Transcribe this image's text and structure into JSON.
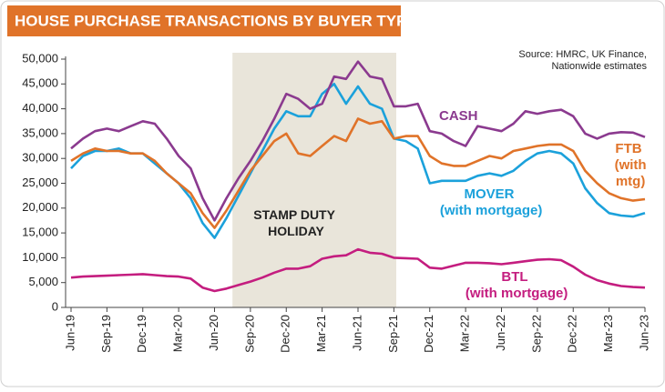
{
  "chart_data": {
    "type": "line",
    "title": "HOUSE PURCHASE TRANSACTIONS BY BUYER TYPE",
    "source": "Source: HMRC, UK Finance, Nationwide estimates",
    "categories": [
      "Jun-19",
      null,
      null,
      "Sep-19",
      null,
      null,
      "Dec-19",
      null,
      null,
      "Mar-20",
      null,
      null,
      "Jun-20",
      null,
      null,
      "Sep-20",
      null,
      null,
      "Dec-20",
      null,
      null,
      "Mar-21",
      null,
      null,
      "Jun-21",
      null,
      null,
      "Sep-21",
      null,
      null,
      "Dec-21",
      null,
      null,
      "Mar-22",
      null,
      null,
      "Jun-22",
      null,
      null,
      "Sep-22",
      null,
      null,
      "Dec-22",
      null,
      null,
      "Mar-23",
      null,
      null,
      "Jun-23"
    ],
    "series": [
      {
        "name": "CASH",
        "color": "#8b3a8f",
        "values": [
          32000,
          34000,
          35500,
          36000,
          35500,
          36500,
          37500,
          37000,
          34000,
          30500,
          28000,
          22000,
          17500,
          22000,
          26000,
          29500,
          33500,
          38000,
          43000,
          42000,
          40000,
          41000,
          46500,
          46000,
          49500,
          46500,
          46000,
          40500,
          40500,
          41000,
          35500,
          35000,
          33500,
          32500,
          36500,
          36000,
          35500,
          37000,
          39500,
          39000,
          39500,
          39800,
          38500,
          35000,
          34000,
          35000,
          35300,
          35200,
          34300
        ]
      },
      {
        "name": "FTB (with mtg)",
        "color": "#e07329",
        "values": [
          29500,
          31000,
          32000,
          31500,
          31500,
          31000,
          31000,
          29500,
          27000,
          25000,
          23000,
          19000,
          16000,
          19500,
          23500,
          27500,
          30500,
          33500,
          35000,
          31000,
          30500,
          32500,
          34500,
          33500,
          38000,
          37000,
          37500,
          34000,
          34500,
          34500,
          30500,
          29000,
          28500,
          28500,
          29500,
          30500,
          30000,
          31500,
          32000,
          32500,
          32800,
          32800,
          31500,
          27500,
          25000,
          23000,
          22000,
          21500,
          21800
        ]
      },
      {
        "name": "MOVER (with mortgage)",
        "color": "#1ba1db",
        "values": [
          28000,
          30500,
          31500,
          31500,
          32000,
          31000,
          31000,
          29000,
          27000,
          25000,
          22000,
          17000,
          14000,
          18000,
          22500,
          27000,
          31500,
          36000,
          39500,
          38500,
          38500,
          43000,
          45000,
          41000,
          44500,
          41000,
          40000,
          34000,
          33500,
          32000,
          25000,
          25500,
          25500,
          25500,
          26500,
          27000,
          26500,
          27500,
          29500,
          31000,
          31500,
          31000,
          29000,
          24000,
          21000,
          19000,
          18500,
          18300,
          19000
        ]
      },
      {
        "name": "BTL (with mortgage)",
        "color": "#c41d7f",
        "values": [
          6000,
          6200,
          6300,
          6400,
          6500,
          6600,
          6700,
          6500,
          6300,
          6200,
          5800,
          4000,
          3300,
          3800,
          4500,
          5200,
          6000,
          7000,
          7800,
          7800,
          8300,
          9800,
          10300,
          10500,
          11700,
          11000,
          10800,
          10000,
          9900,
          9800,
          8000,
          7800,
          8400,
          9000,
          9000,
          8900,
          8700,
          9000,
          9300,
          9600,
          9700,
          9500,
          8200,
          6600,
          5500,
          4800,
          4300,
          4100,
          4000
        ]
      }
    ],
    "ylim": [
      0,
      50000
    ],
    "yticks": [
      0,
      {
        "value": 5000,
        "label": "5,000"
      },
      {
        "value": 10000,
        "label": "10,000"
      },
      {
        "value": 15000,
        "label": "15,000"
      },
      {
        "value": 20000,
        "label": "20,000"
      },
      {
        "value": 25000,
        "label": "25,000"
      },
      {
        "value": 30000,
        "label": "30,000"
      },
      {
        "value": 35000,
        "label": "35,000"
      },
      {
        "value": 40000,
        "label": "40,000"
      },
      {
        "value": 45000,
        "label": "45,000"
      },
      {
        "value": 50000,
        "label": "50,000"
      }
    ],
    "grid": false,
    "shaded_span": {
      "label": "STAMP DUTY HOLIDAY",
      "from": 13.5,
      "to": 27.2,
      "color": "#e9e5da"
    }
  }
}
